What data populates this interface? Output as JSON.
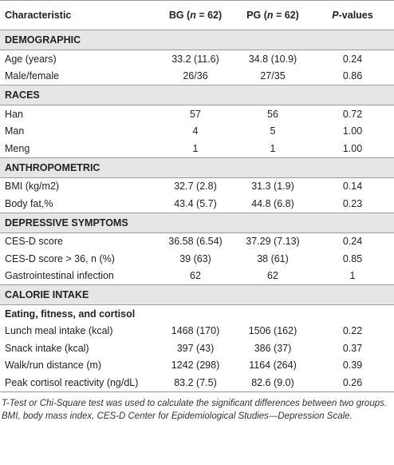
{
  "header": [
    [
      "Characteristic"
    ],
    [
      "BG (",
      "n",
      " = 62)"
    ],
    [
      "PG (",
      "n",
      " = 62)"
    ],
    [
      "P",
      "-values"
    ]
  ],
  "sections": [
    {
      "title": "DEMOGRAPHIC",
      "rows": [
        [
          "Age (years)",
          "33.2 (11.6)",
          "34.8 (10.9)",
          "0.24"
        ],
        [
          "Male/female",
          "26/36",
          "27/35",
          "0.86"
        ]
      ]
    },
    {
      "title": "RACES",
      "rows": [
        [
          "Han",
          "57",
          "56",
          "0.72"
        ],
        [
          "Man",
          "4",
          "5",
          "1.00"
        ],
        [
          "Meng",
          "1",
          "1",
          "1.00"
        ]
      ]
    },
    {
      "title": "ANTHROPOMETRIC",
      "rows": [
        [
          "BMI (kg/m2)",
          "32.7 (2.8)",
          "31.3 (1.9)",
          "0.14"
        ],
        [
          "Body fat,%",
          "43.4 (5.7)",
          "44.8 (6.8)",
          "0.23"
        ]
      ]
    },
    {
      "title": "DEPRESSIVE SYMPTOMS",
      "rows": [
        [
          "CES-D score",
          "36.58 (6.54)",
          "37.29 (7.13)",
          "0.24"
        ],
        [
          "CES-D score > 36, n (%)",
          "39 (63)",
          "38 (61)",
          "0.85"
        ],
        [
          "Gastrointestinal infection",
          "62",
          "62",
          "1"
        ]
      ]
    },
    {
      "title": "CALORIE INTAKE",
      "subtitle": "Eating, fitness, and cortisol",
      "rows": [
        [
          "Lunch meal intake (kcal)",
          "1468 (170)",
          "1506 (162)",
          "0.22"
        ],
        [
          "Snack intake (kcal)",
          "397 (43)",
          "386 (37)",
          "0.37"
        ],
        [
          "Walk/run distance (m)",
          "1242 (298)",
          "1164 (264)",
          "0.39"
        ],
        [
          "Peak cortisol reactivity (ng/dL)",
          "83.2 (7.5)",
          "82.6 (9.0)",
          "0.26"
        ]
      ]
    }
  ],
  "footnote": "T-Test or Chi-Square test was used to calculate the significant differences between two groups. BMI, body mass index, CES-D Center for Epidemiological Studies—Depression Scale."
}
